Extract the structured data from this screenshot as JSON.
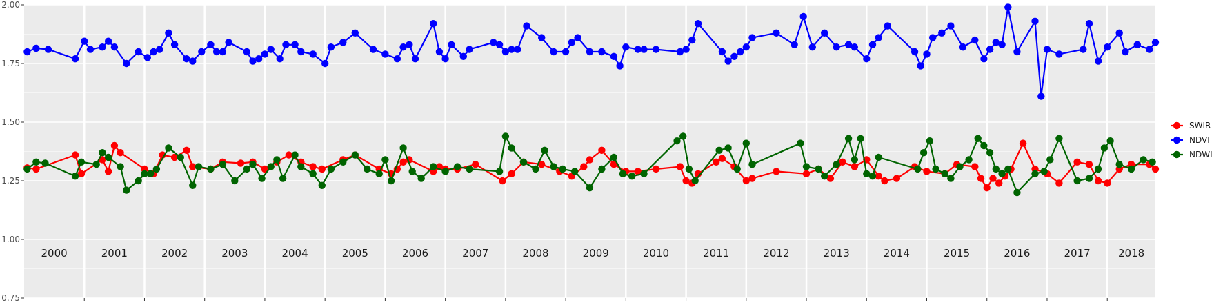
{
  "chart_data": {
    "type": "line",
    "title": "",
    "xlabel": "",
    "ylabel": "",
    "ylim": [
      0.75,
      2.0
    ],
    "yticks": [
      "0.75",
      "1.00",
      "1.25",
      "1.50",
      "1.75",
      "2.00"
    ],
    "xlim": [
      2000.0,
      2018.8
    ],
    "years": [
      "2000",
      "2001",
      "2002",
      "2003",
      "2004",
      "2005",
      "2006",
      "2007",
      "2008",
      "2009",
      "2010",
      "2011",
      "2012",
      "2013",
      "2014",
      "2015",
      "2016",
      "2017",
      "2018"
    ],
    "grid": true,
    "legend_position": "right",
    "series": [
      {
        "name": "SWIR",
        "color": "#ff0000",
        "x": [
          2000.05,
          2000.2,
          2000.85,
          2000.95,
          2001.3,
          2001.4,
          2001.5,
          2001.6,
          2002.0,
          2002.15,
          2002.3,
          2002.5,
          2002.7,
          2002.8,
          2003.1,
          2003.3,
          2003.6,
          2003.8,
          2004.0,
          2004.2,
          2004.4,
          2004.6,
          2004.8,
          2004.95,
          2005.3,
          2005.5,
          2005.9,
          2006.1,
          2006.2,
          2006.3,
          2006.4,
          2006.8,
          2006.9,
          2007.0,
          2007.2,
          2007.5,
          2007.95,
          2008.1,
          2008.3,
          2008.6,
          2008.9,
          2009.1,
          2009.3,
          2009.4,
          2009.6,
          2009.8,
          2010.0,
          2010.2,
          2010.5,
          2010.9,
          2011.0,
          2011.1,
          2011.2,
          2011.5,
          2011.6,
          2011.8,
          2012.0,
          2012.1,
          2012.5,
          2013.0,
          2013.2,
          2013.4,
          2013.6,
          2013.8,
          2014.0,
          2014.2,
          2014.3,
          2014.5,
          2014.8,
          2015.0,
          2015.3,
          2015.5,
          2015.8,
          2015.9,
          2016.0,
          2016.1,
          2016.2,
          2016.3,
          2016.4,
          2016.6,
          2016.8,
          2017.0,
          2017.2,
          2017.5,
          2017.7,
          2017.85,
          2018.0,
          2018.2,
          2018.4,
          2018.7,
          2018.8
        ],
        "values": [
          1.305,
          1.3,
          1.36,
          1.28,
          1.34,
          1.29,
          1.4,
          1.37,
          1.3,
          1.28,
          1.36,
          1.35,
          1.38,
          1.31,
          1.3,
          1.33,
          1.325,
          1.33,
          1.3,
          1.33,
          1.36,
          1.33,
          1.31,
          1.3,
          1.34,
          1.36,
          1.3,
          1.28,
          1.3,
          1.33,
          1.34,
          1.29,
          1.31,
          1.3,
          1.3,
          1.32,
          1.25,
          1.28,
          1.33,
          1.32,
          1.29,
          1.27,
          1.31,
          1.34,
          1.38,
          1.32,
          1.29,
          1.29,
          1.3,
          1.31,
          1.25,
          1.24,
          1.28,
          1.33,
          1.345,
          1.31,
          1.25,
          1.26,
          1.29,
          1.28,
          1.3,
          1.26,
          1.33,
          1.31,
          1.34,
          1.27,
          1.25,
          1.26,
          1.31,
          1.29,
          1.28,
          1.32,
          1.31,
          1.26,
          1.22,
          1.26,
          1.24,
          1.27,
          1.3,
          1.41,
          1.3,
          1.28,
          1.24,
          1.33,
          1.32,
          1.25,
          1.24,
          1.3,
          1.32,
          1.32,
          1.3
        ]
      },
      {
        "name": "NDVI",
        "color": "#0000ff",
        "x": [
          2000.05,
          2000.2,
          2000.4,
          2000.85,
          2001.0,
          2001.1,
          2001.3,
          2001.4,
          2001.5,
          2001.7,
          2001.9,
          2002.05,
          2002.15,
          2002.25,
          2002.4,
          2002.5,
          2002.7,
          2002.8,
          2002.95,
          2003.1,
          2003.2,
          2003.3,
          2003.4,
          2003.7,
          2003.8,
          2003.9,
          2004.0,
          2004.1,
          2004.25,
          2004.35,
          2004.5,
          2004.6,
          2004.8,
          2005.0,
          2005.1,
          2005.3,
          2005.5,
          2005.8,
          2006.0,
          2006.2,
          2006.3,
          2006.4,
          2006.5,
          2006.8,
          2006.9,
          2007.0,
          2007.1,
          2007.3,
          2007.4,
          2007.8,
          2007.9,
          2008.0,
          2008.1,
          2008.2,
          2008.35,
          2008.6,
          2008.8,
          2009.0,
          2009.1,
          2009.2,
          2009.4,
          2009.6,
          2009.8,
          2009.9,
          2010.0,
          2010.2,
          2010.3,
          2010.5,
          2010.9,
          2011.0,
          2011.1,
          2011.2,
          2011.6,
          2011.7,
          2011.8,
          2011.9,
          2012.0,
          2012.1,
          2012.5,
          2012.8,
          2012.95,
          2013.1,
          2013.3,
          2013.5,
          2013.7,
          2013.8,
          2014.0,
          2014.1,
          2014.2,
          2014.35,
          2014.8,
          2014.9,
          2015.0,
          2015.1,
          2015.25,
          2015.4,
          2015.6,
          2015.8,
          2015.95,
          2016.05,
          2016.15,
          2016.25,
          2016.35,
          2016.5,
          2016.8,
          2016.9,
          2017.0,
          2017.2,
          2017.6,
          2017.7,
          2017.85,
          2018.0,
          2018.2,
          2018.3,
          2018.5,
          2018.7,
          2018.8
        ],
        "values": [
          1.8,
          1.815,
          1.81,
          1.77,
          1.845,
          1.81,
          1.82,
          1.845,
          1.82,
          1.75,
          1.8,
          1.775,
          1.8,
          1.81,
          1.88,
          1.83,
          1.77,
          1.76,
          1.8,
          1.83,
          1.8,
          1.8,
          1.84,
          1.8,
          1.76,
          1.77,
          1.79,
          1.81,
          1.77,
          1.83,
          1.83,
          1.8,
          1.79,
          1.75,
          1.82,
          1.84,
          1.88,
          1.81,
          1.79,
          1.77,
          1.82,
          1.83,
          1.77,
          1.92,
          1.8,
          1.77,
          1.83,
          1.78,
          1.81,
          1.84,
          1.83,
          1.8,
          1.81,
          1.81,
          1.91,
          1.86,
          1.8,
          1.8,
          1.84,
          1.86,
          1.8,
          1.8,
          1.78,
          1.74,
          1.82,
          1.81,
          1.81,
          1.81,
          1.8,
          1.81,
          1.85,
          1.92,
          1.8,
          1.76,
          1.78,
          1.8,
          1.82,
          1.86,
          1.88,
          1.83,
          1.95,
          1.82,
          1.88,
          1.82,
          1.83,
          1.82,
          1.77,
          1.83,
          1.86,
          1.91,
          1.8,
          1.74,
          1.79,
          1.86,
          1.88,
          1.91,
          1.82,
          1.85,
          1.77,
          1.81,
          1.84,
          1.83,
          1.99,
          1.8,
          1.93,
          1.61,
          1.81,
          1.79,
          1.81,
          1.92,
          1.76,
          1.82,
          1.88,
          1.8,
          1.83,
          1.81,
          1.84
        ]
      },
      {
        "name": "NDWI",
        "color": "#006400",
        "x": [
          2000.05,
          2000.2,
          2000.35,
          2000.85,
          2000.95,
          2001.2,
          2001.3,
          2001.4,
          2001.6,
          2001.7,
          2001.9,
          2002.0,
          2002.1,
          2002.2,
          2002.4,
          2002.6,
          2002.8,
          2002.9,
          2003.1,
          2003.3,
          2003.5,
          2003.7,
          2003.8,
          2003.95,
          2004.1,
          2004.2,
          2004.3,
          2004.5,
          2004.6,
          2004.8,
          2004.95,
          2005.1,
          2005.3,
          2005.5,
          2005.7,
          2005.9,
          2006.0,
          2006.1,
          2006.3,
          2006.45,
          2006.6,
          2006.8,
          2007.0,
          2007.2,
          2007.4,
          2007.9,
          2008.0,
          2008.1,
          2008.3,
          2008.5,
          2008.65,
          2008.8,
          2008.95,
          2009.15,
          2009.4,
          2009.6,
          2009.8,
          2009.95,
          2010.1,
          2010.3,
          2010.85,
          2010.95,
          2011.05,
          2011.15,
          2011.55,
          2011.7,
          2011.85,
          2012.0,
          2012.1,
          2012.9,
          2013.0,
          2013.2,
          2013.3,
          2013.5,
          2013.7,
          2013.8,
          2013.9,
          2014.0,
          2014.1,
          2014.2,
          2014.85,
          2014.95,
          2015.05,
          2015.15,
          2015.3,
          2015.4,
          2015.55,
          2015.7,
          2015.85,
          2015.95,
          2016.05,
          2016.15,
          2016.25,
          2016.35,
          2016.5,
          2016.8,
          2016.95,
          2017.05,
          2017.2,
          2017.5,
          2017.7,
          2017.85,
          2017.95,
          2018.05,
          2018.2,
          2018.4,
          2018.6,
          2018.75
        ],
        "values": [
          1.3,
          1.33,
          1.325,
          1.27,
          1.33,
          1.32,
          1.37,
          1.35,
          1.31,
          1.21,
          1.25,
          1.28,
          1.28,
          1.3,
          1.39,
          1.35,
          1.23,
          1.31,
          1.3,
          1.32,
          1.25,
          1.3,
          1.32,
          1.26,
          1.31,
          1.34,
          1.26,
          1.36,
          1.31,
          1.28,
          1.23,
          1.3,
          1.33,
          1.36,
          1.3,
          1.28,
          1.34,
          1.25,
          1.39,
          1.29,
          1.26,
          1.31,
          1.29,
          1.31,
          1.3,
          1.29,
          1.44,
          1.39,
          1.33,
          1.3,
          1.38,
          1.31,
          1.3,
          1.29,
          1.22,
          1.3,
          1.35,
          1.28,
          1.27,
          1.28,
          1.42,
          1.44,
          1.3,
          1.25,
          1.38,
          1.39,
          1.3,
          1.41,
          1.32,
          1.41,
          1.31,
          1.3,
          1.27,
          1.32,
          1.43,
          1.34,
          1.43,
          1.28,
          1.27,
          1.35,
          1.3,
          1.37,
          1.42,
          1.3,
          1.28,
          1.26,
          1.31,
          1.34,
          1.43,
          1.4,
          1.37,
          1.3,
          1.28,
          1.3,
          1.2,
          1.28,
          1.29,
          1.34,
          1.43,
          1.25,
          1.26,
          1.3,
          1.39,
          1.42,
          1.32,
          1.3,
          1.34,
          1.33
        ]
      }
    ]
  }
}
